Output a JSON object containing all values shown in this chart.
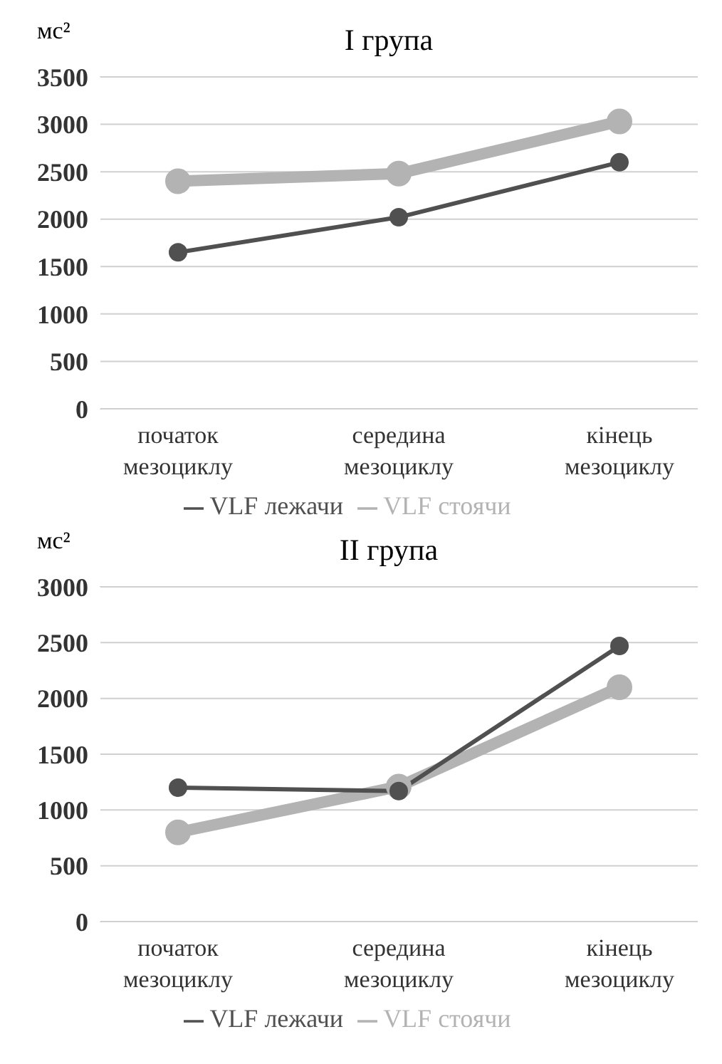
{
  "chart_data": [
    {
      "type": "line",
      "title": "I  група",
      "ylabel": "мс²",
      "categories": [
        "початок мезоциклу",
        "середина мезоциклу",
        "кінець мезоциклу"
      ],
      "series": [
        {
          "name": "VLF лежачи",
          "color": "#505050",
          "values": [
            1650,
            2020,
            2600
          ]
        },
        {
          "name": "VLF стоячи",
          "color": "#b3b3b3",
          "values": [
            2400,
            2480,
            3030
          ]
        }
      ],
      "ylim": [
        0,
        3500
      ],
      "yticks": [
        0,
        500,
        1000,
        1500,
        2000,
        2500,
        3000,
        3500
      ],
      "grid": "y",
      "legend": "bottom",
      "marker": "circle"
    },
    {
      "type": "line",
      "title": "II група",
      "ylabel": "мс²",
      "categories": [
        "початок мезоциклу",
        "середина мезоциклу",
        "кінець мезоциклу"
      ],
      "series": [
        {
          "name": "VLF лежачи",
          "color": "#505050",
          "values": [
            1200,
            1170,
            2470
          ]
        },
        {
          "name": "VLF стоячи",
          "color": "#b3b3b3",
          "values": [
            800,
            1210,
            2100
          ]
        }
      ],
      "ylim": [
        0,
        3000
      ],
      "yticks": [
        0,
        500,
        1000,
        1500,
        2000,
        2500,
        3000
      ],
      "grid": "y",
      "legend": "bottom",
      "marker": "circle"
    }
  ]
}
